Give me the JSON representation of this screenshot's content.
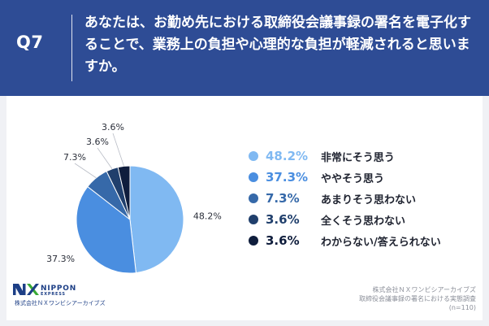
{
  "header": {
    "question_label": "Q7",
    "question_text": "あなたは、お勤め先における取締役会議事録の署名を電子化することで、業務上の負担や心理的な負担が軽減されると思いますか。"
  },
  "colors": {
    "header_bg": "#2e4c95",
    "page_bg": "#f0f1f5",
    "card_bg": "#ffffff",
    "logo_blue": "#1d3f86",
    "logo_green": "#3aa935"
  },
  "chart_data": {
    "type": "pie",
    "title": "",
    "start": "12 o'clock",
    "direction": "clockwise",
    "series": [
      {
        "categories": [
          "非常にそう思う",
          "ややそう思う",
          "あまりそう思わない",
          "全くそう思わない",
          "わからない/答えられない"
        ],
        "values": [
          48.2,
          37.3,
          7.3,
          3.6,
          3.6
        ],
        "data_labels": [
          "48.2%",
          "37.3%",
          "7.3%",
          "3.6%",
          "3.6%"
        ],
        "colors": [
          "#80b9f2",
          "#4a8ee0",
          "#3669a9",
          "#203f6c",
          "#0f1d3c"
        ]
      }
    ],
    "legend": {
      "position": "right",
      "items": [
        {
          "percent": "48.2%",
          "label": "非常にそう思う",
          "color": "#80b9f2"
        },
        {
          "percent": "37.3%",
          "label": "ややそう思う",
          "color": "#4a8ee0"
        },
        {
          "percent": "7.3%",
          "label": "あまりそう思わない",
          "color": "#3669a9"
        },
        {
          "percent": "3.6%",
          "label": "全くそう思わない",
          "color": "#203f6c"
        },
        {
          "percent": "3.6%",
          "label": "わからない/答えられない",
          "color": "#0f1d3c"
        }
      ]
    }
  },
  "logo": {
    "wordmark_top": "NIPPON",
    "wordmark_bottom": "EXPRESS",
    "company": "株式会社ＮＸワンビシアーカイブズ"
  },
  "credits": {
    "line1": "株式会社ＮＸワンビシアーカイブズ",
    "line2": "取締役会議事録の署名における実態調査",
    "line3": "(n=110)"
  }
}
